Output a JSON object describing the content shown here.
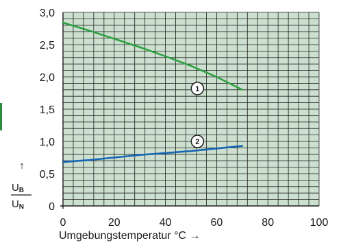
{
  "colors": {
    "plot_bg": "#cde0cf",
    "grid": "#1d1d1d",
    "curve1": "#2ea043",
    "curve2": "#1565b5",
    "side_tab": "#2e8b3e"
  },
  "chart_data": {
    "type": "line",
    "xlabel": "Umgebungstemperatur °C →",
    "ylabel": {
      "arrow": "↑",
      "numerator": "U",
      "numerator_sub": "B",
      "denominator": "U",
      "denominator_sub": "N"
    },
    "xlim": [
      0,
      100
    ],
    "ylim": [
      0,
      3.0
    ],
    "x_ticks": [
      "0",
      "20",
      "40",
      "60",
      "80",
      "100"
    ],
    "x_tick_values": [
      0,
      20,
      40,
      60,
      80,
      100
    ],
    "y_ticks": [
      "0",
      "0,5",
      "1,0",
      "1,5",
      "2,0",
      "2,5",
      "3,0"
    ],
    "y_tick_values": [
      0,
      0.5,
      1.0,
      1.5,
      2.0,
      2.5,
      3.0
    ],
    "grid": true,
    "minor_divisions": 5,
    "series": [
      {
        "marker": "1",
        "x": [
          0,
          10,
          20,
          30,
          40,
          50,
          60,
          70
        ],
        "y": [
          2.84,
          2.72,
          2.59,
          2.46,
          2.32,
          2.17,
          2.0,
          1.8
        ],
        "marker_at": [
          45,
          1.82
        ]
      },
      {
        "marker": "2",
        "x": [
          0,
          10,
          20,
          30,
          40,
          50,
          60,
          70
        ],
        "y": [
          0.68,
          0.71,
          0.75,
          0.79,
          0.82,
          0.85,
          0.89,
          0.93
        ],
        "marker_at": [
          45,
          1.0
        ]
      }
    ]
  }
}
